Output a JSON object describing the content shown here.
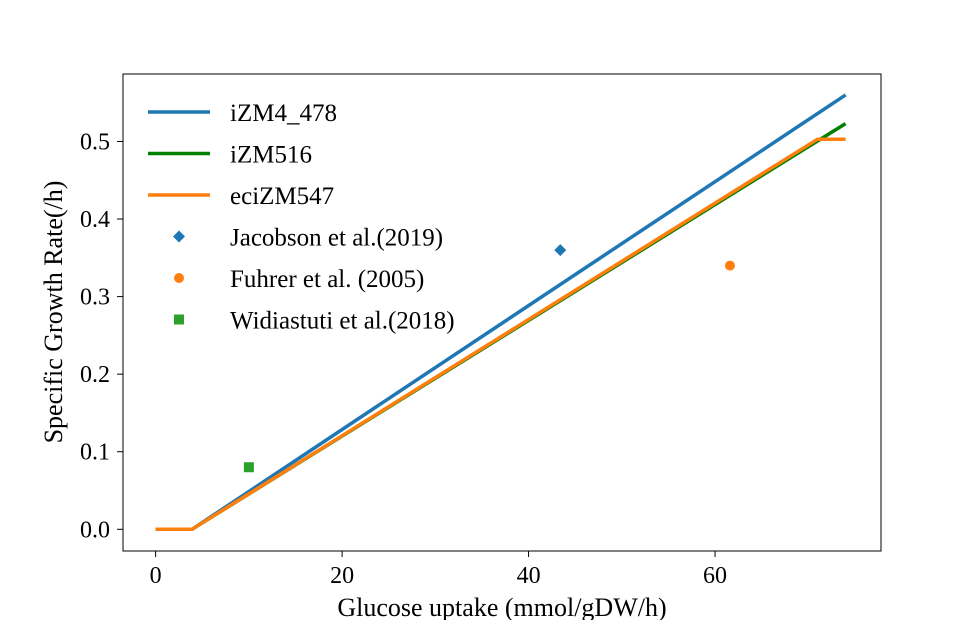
{
  "chart_data": {
    "type": "line",
    "title": "",
    "xlabel": "Glucose uptake (mmol/gDW/h)",
    "ylabel": "Specific Growth Rate(/h)",
    "xlim": [
      -3.5,
      77.8
    ],
    "ylim": [
      -0.028,
      0.587
    ],
    "xticks": [
      0,
      20,
      40,
      60
    ],
    "yticks": [
      0.0,
      0.1,
      0.2,
      0.3,
      0.4,
      0.5
    ],
    "xtick_labels": [
      "0",
      "20",
      "40",
      "60"
    ],
    "ytick_labels": [
      "0.0",
      "0.1",
      "0.2",
      "0.3",
      "0.4",
      "0.5"
    ],
    "grid": false,
    "legend_position": "top-left",
    "series": [
      {
        "name": "iZM4_478",
        "kind": "line",
        "color": "#1f77b4",
        "points": [
          [
            0,
            0.0
          ],
          [
            3.9,
            0.0
          ],
          [
            74,
            0.56
          ]
        ]
      },
      {
        "name": "iZM516",
        "kind": "line",
        "color": "#008000",
        "points": [
          [
            0,
            0.0
          ],
          [
            3.9,
            0.0
          ],
          [
            74,
            0.523
          ]
        ]
      },
      {
        "name": "eciZM547",
        "kind": "line",
        "color": "#ff7f0e",
        "points": [
          [
            0,
            0.0
          ],
          [
            3.9,
            0.0
          ],
          [
            71,
            0.503
          ],
          [
            74,
            0.503
          ]
        ]
      },
      {
        "name": "Jacobson et al.(2019)",
        "kind": "scatter",
        "marker": "diamond",
        "color": "#1f77b4",
        "points": [
          [
            43.4,
            0.36
          ]
        ]
      },
      {
        "name": "Fuhrer et al. (2005)",
        "kind": "scatter",
        "marker": "circle",
        "color": "#ff7f0e",
        "points": [
          [
            61.6,
            0.34
          ]
        ]
      },
      {
        "name": "Widiastuti et al.(2018)",
        "kind": "scatter",
        "marker": "square",
        "color": "#2ca02c",
        "points": [
          [
            10,
            0.08
          ]
        ]
      }
    ]
  }
}
